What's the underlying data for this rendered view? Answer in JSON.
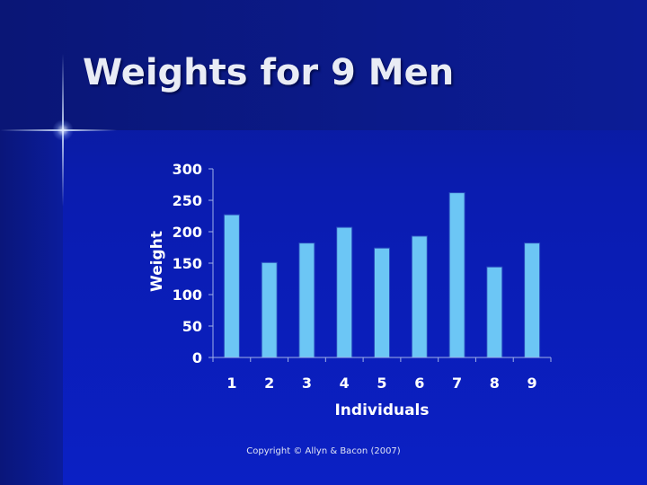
{
  "slide": {
    "title": "Weights for 9 Men",
    "copyright": "Copyright © Allyn & Bacon (2007)"
  },
  "colors": {
    "bar_fill": "#6cc6f5",
    "bar_stroke": "#2a4cc0",
    "axis": "#9fb0e8",
    "text": "#ffffff"
  },
  "chart_data": {
    "type": "bar",
    "categories": [
      "1",
      "2",
      "3",
      "4",
      "5",
      "6",
      "7",
      "8",
      "9"
    ],
    "values": [
      227,
      151,
      182,
      207,
      174,
      193,
      262,
      144,
      182
    ],
    "xlabel": "Individuals",
    "ylabel": "Weight",
    "ylim": [
      0,
      300
    ],
    "yticks": [
      "0",
      "50",
      "100",
      "150",
      "200",
      "250",
      "300"
    ],
    "grid": false,
    "legend": "none"
  }
}
